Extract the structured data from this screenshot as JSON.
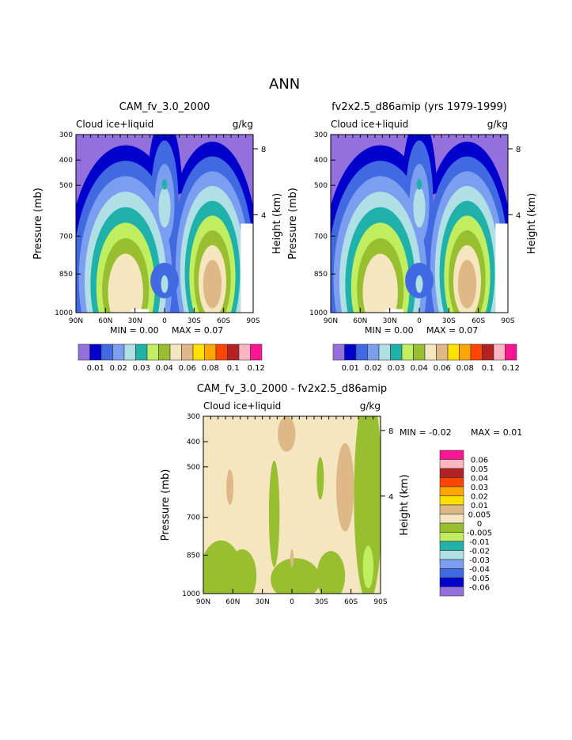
{
  "title": "ANN",
  "colors": [
    "#9370db",
    "#0000cd",
    "#4169e1",
    "#7b9ef0",
    "#b0e0e6",
    "#20b2aa",
    "#c0ee60",
    "#98bf30",
    "#f5e6c0",
    "#deb887",
    "#ffe000",
    "#ffa500",
    "#ff4500",
    "#b22222",
    "#ffb6c1",
    "#ff1493"
  ],
  "chart_data": [
    {
      "type": "heatmap",
      "title": "CAM_fv_3.0_2000",
      "left_label": "Cloud ice+liquid",
      "units": "g/kg",
      "ylabel": "Pressure (mb)",
      "ylabel_right": "Height (km)",
      "yticks": [
        "300",
        "400",
        "500",
        "700",
        "850",
        "1000"
      ],
      "yticks_right": [
        "8",
        "4"
      ],
      "xticks": [
        "90N",
        "60N",
        "30N",
        "0",
        "30S",
        "60S",
        "90S"
      ],
      "min_text": "MIN =    0.00",
      "max_text": "MAX =    0.07",
      "colorbar_labels": [
        "0.01",
        "0.02",
        "0.03",
        "0.04",
        "0.06",
        "0.08",
        "0.1",
        "0.12"
      ]
    },
    {
      "type": "heatmap",
      "title": "fv2x2.5_d86amip (yrs 1979-1999)",
      "left_label": "Cloud ice+liquid",
      "units": "g/kg",
      "ylabel": "Pressure (mb)",
      "ylabel_right": "Height (km)",
      "yticks": [
        "300",
        "400",
        "500",
        "700",
        "850",
        "1000"
      ],
      "yticks_right": [
        "8",
        "4"
      ],
      "xticks": [
        "90N",
        "60N",
        "30N",
        "0",
        "30S",
        "60S",
        "90S"
      ],
      "min_text": "MIN =    0.00",
      "max_text": "MAX =    0.07",
      "colorbar_labels": [
        "0.01",
        "0.02",
        "0.03",
        "0.04",
        "0.06",
        "0.08",
        "0.1",
        "0.12"
      ]
    },
    {
      "type": "heatmap",
      "title": "CAM_fv_3.0_2000 - fv2x2.5_d86amip",
      "left_label": "Cloud ice+liquid",
      "units": "g/kg",
      "ylabel": "Pressure (mb)",
      "ylabel_right": "Height (km)",
      "yticks": [
        "300",
        "400",
        "500",
        "700",
        "850",
        "1000"
      ],
      "yticks_right": [
        "8",
        "4"
      ],
      "xticks": [
        "90N",
        "60N",
        "30N",
        "0",
        "30S",
        "60S",
        "90S"
      ],
      "min_text": "MIN =   -0.02",
      "max_text": "MAX =    0.01",
      "colorbar_labels": [
        "0.06",
        "0.05",
        "0.04",
        "0.03",
        "0.02",
        "0.01",
        "0.005",
        "0",
        "-0.005",
        "-0.01",
        "-0.02",
        "-0.03",
        "-0.04",
        "-0.05",
        "-0.06"
      ]
    }
  ]
}
